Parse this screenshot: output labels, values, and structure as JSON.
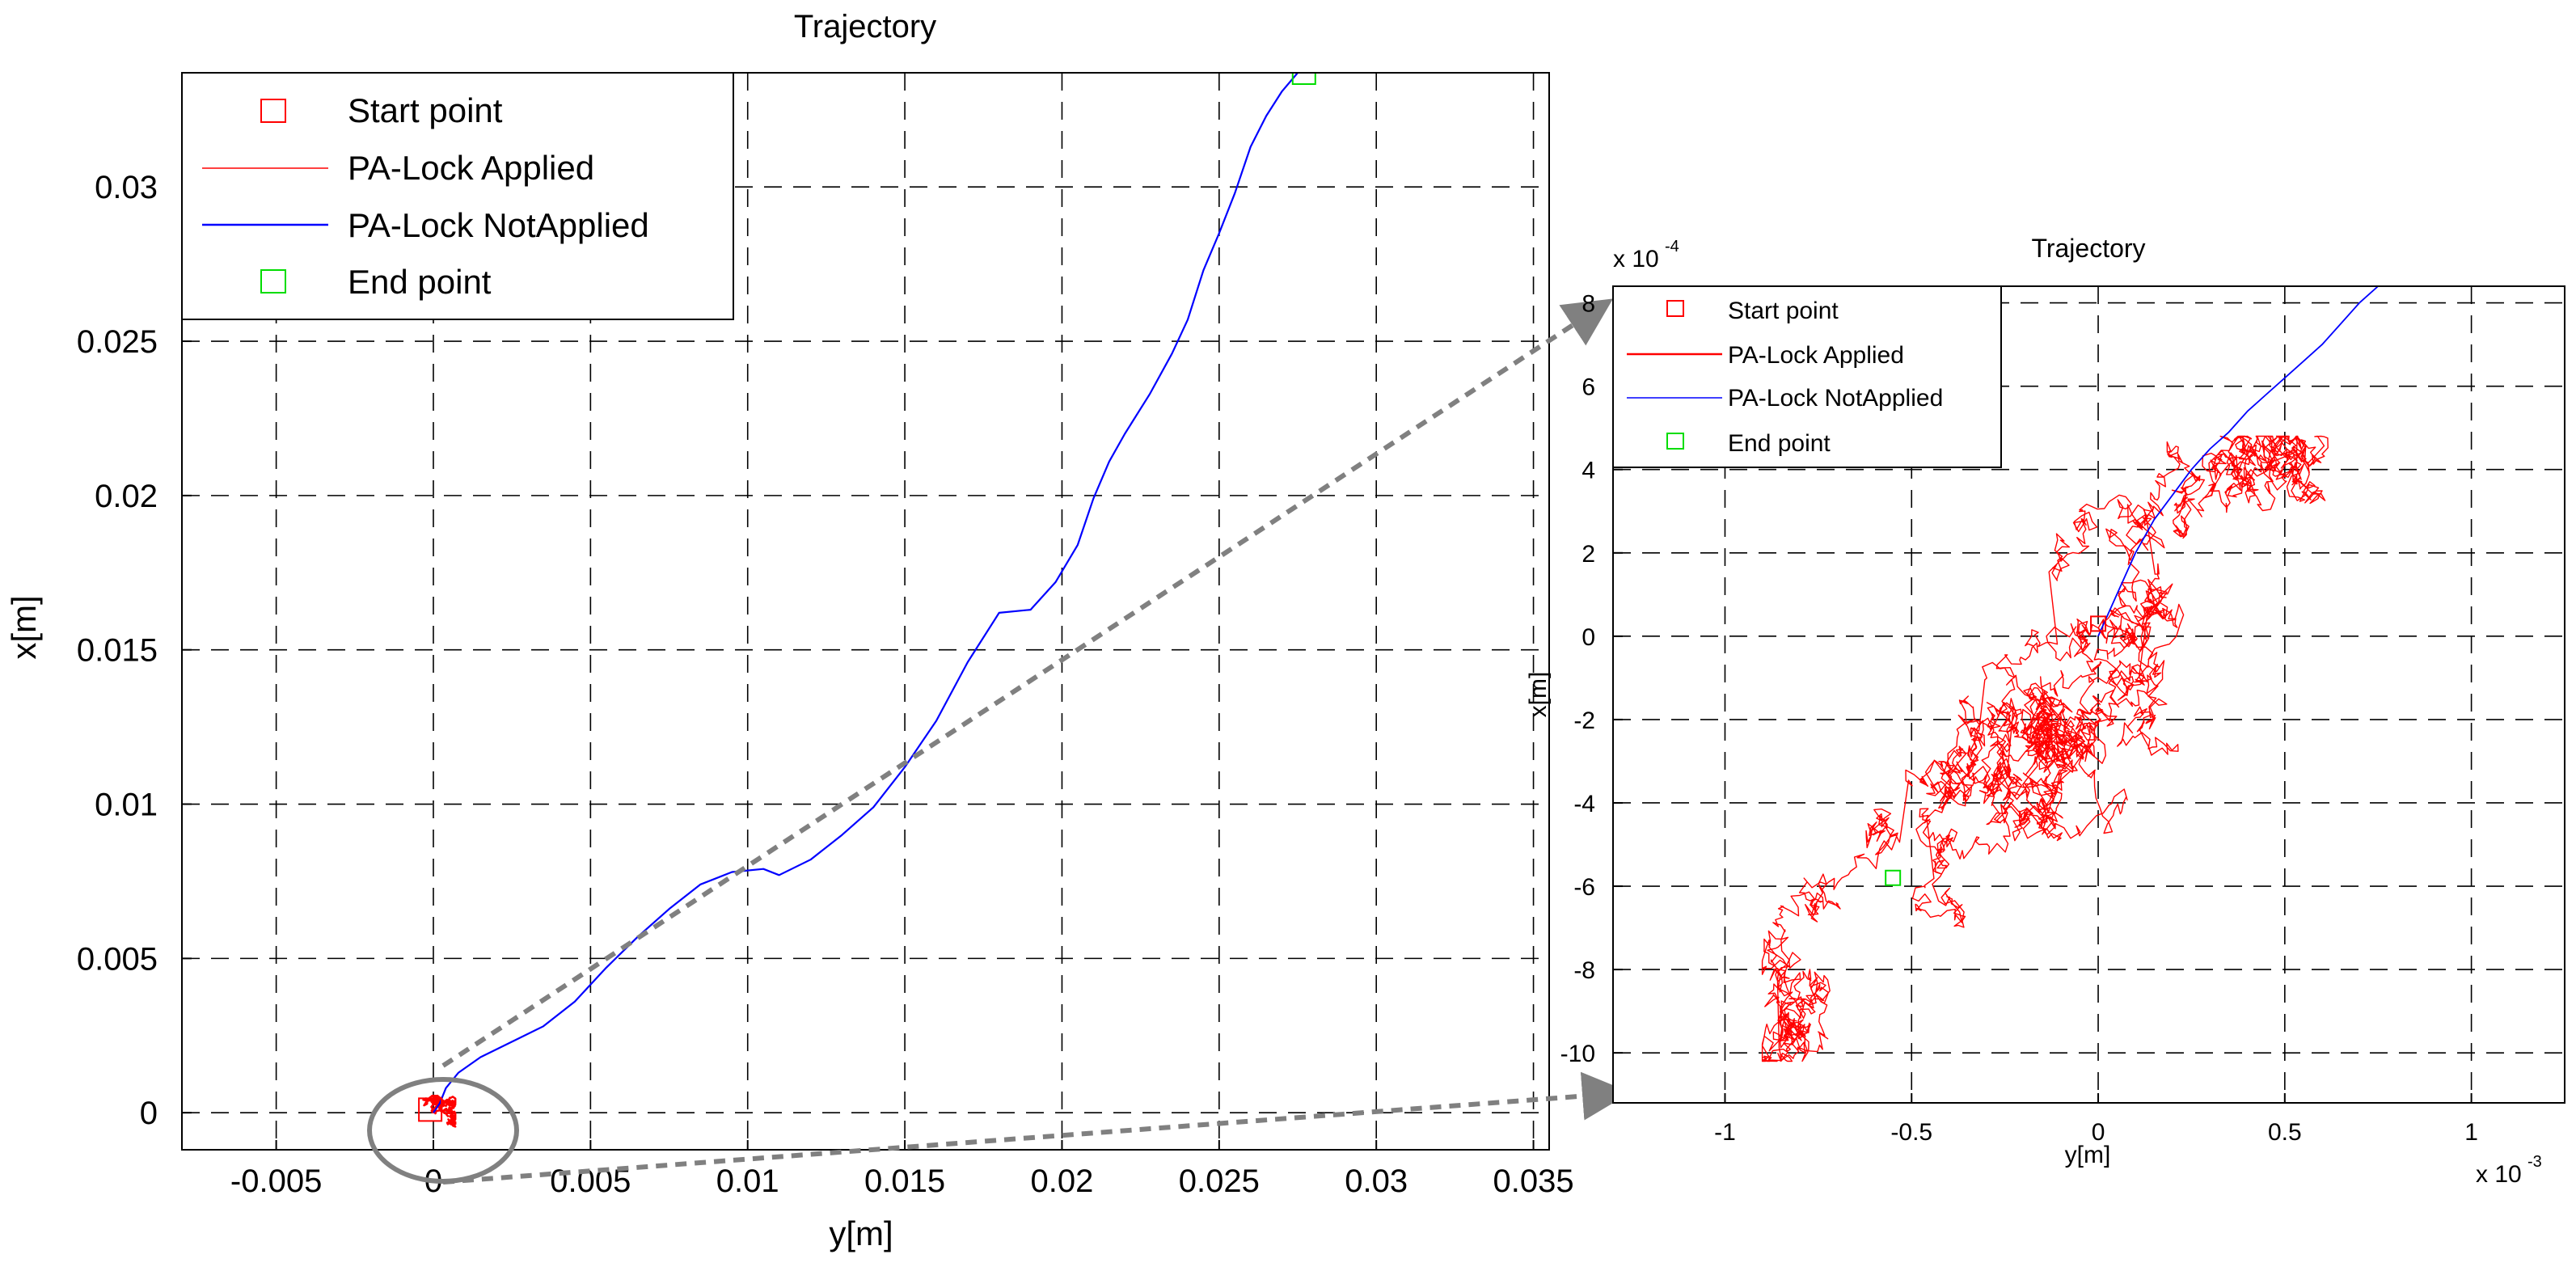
{
  "colors": {
    "start": "#ff0000",
    "applied": "#ff0000",
    "not_applied": "#0000ff",
    "end": "#00dd00",
    "grid": "#000000",
    "arrow": "#808080"
  },
  "chart_data": [
    {
      "type": "line",
      "title": "Trajectory",
      "xlabel": "y[m]",
      "ylabel": "x[m]",
      "xlim": [
        -0.008,
        0.0355
      ],
      "ylim": [
        -0.0012,
        0.0337
      ],
      "grid": true,
      "xticks": [
        -0.005,
        0,
        0.005,
        0.01,
        0.015,
        0.02,
        0.025,
        0.03,
        0.035
      ],
      "xtick_labels": [
        "-0.005",
        "0",
        "0.005",
        "0.01",
        "0.015",
        "0.02",
        "0.025",
        "0.03",
        "0.035"
      ],
      "yticks": [
        0,
        0.005,
        0.01,
        0.015,
        0.02,
        0.025,
        0.03
      ],
      "ytick_labels": [
        "0",
        "0.005",
        "0.01",
        "0.015",
        "0.02",
        "0.025",
        "0.03"
      ],
      "legend_position": "top-left",
      "legend": [
        "Start point",
        "PA-Lock Applied",
        "PA-Lock NotApplied",
        "End point"
      ],
      "series": [
        {
          "name": "PA-Lock NotApplied",
          "x": [
            0,
            0.0002,
            0.0004,
            0.0008,
            0.0015,
            0.0025,
            0.0035,
            0.0045,
            0.0055,
            0.0065,
            0.0075,
            0.0085,
            0.0095,
            0.0105,
            0.011,
            0.012,
            0.013,
            0.014,
            0.015,
            0.016,
            0.017,
            0.018,
            0.019,
            0.0198,
            0.0205,
            0.021,
            0.0215,
            0.022,
            0.0228,
            0.0235,
            0.024,
            0.0245,
            0.025,
            0.0255,
            0.026,
            0.0265,
            0.027,
            0.0275
          ],
          "y": [
            0,
            0.0003,
            0.0008,
            0.0013,
            0.0018,
            0.0023,
            0.0028,
            0.0036,
            0.0047,
            0.0057,
            0.0066,
            0.0074,
            0.0078,
            0.0079,
            0.0077,
            0.0082,
            0.009,
            0.0099,
            0.0112,
            0.0127,
            0.0146,
            0.0162,
            0.0163,
            0.0172,
            0.0184,
            0.0199,
            0.0211,
            0.022,
            0.0233,
            0.0246,
            0.0257,
            0.0273,
            0.0285,
            0.0298,
            0.0313,
            0.0323,
            0.0331,
            0.0337
          ]
        }
      ],
      "markers": [
        {
          "name": "Start point",
          "x": -0.0001,
          "y": 0.0001
        },
        {
          "name": "End point",
          "x": 0.0277,
          "y": 0.0337
        }
      ]
    },
    {
      "type": "line",
      "title": "Trajectory",
      "xlabel": "y[m]",
      "ylabel": "x[m]",
      "xlim": [
        -1.3,
        1.25
      ],
      "ylim": [
        -11.2,
        8.4
      ],
      "x_multiplier_label": "x 10",
      "x_multiplier_exp": "-3",
      "y_multiplier_label": "x 10",
      "y_multiplier_exp": "-4",
      "grid": true,
      "xticks": [
        -1,
        -0.5,
        0,
        0.5,
        1
      ],
      "xtick_labels": [
        "-1",
        "-0.5",
        "0",
        "0.5",
        "1"
      ],
      "yticks": [
        -10,
        -8,
        -6,
        -4,
        -2,
        0,
        2,
        4,
        6,
        8
      ],
      "ytick_labels": [
        "-10",
        "-8",
        "-6",
        "-4",
        "-2",
        "0",
        "2",
        "4",
        "6",
        "8"
      ],
      "legend_position": "top-left",
      "legend": [
        "Start point",
        "PA-Lock Applied",
        "PA-Lock NotApplied",
        "End point"
      ],
      "series": [
        {
          "name": "PA-Lock NotApplied",
          "x": [
            0,
            0.05,
            0.1,
            0.15,
            0.2,
            0.25,
            0.3,
            0.35,
            0.4,
            0.45,
            0.5,
            0.55,
            0.6,
            0.65,
            0.7,
            0.75
          ],
          "y": [
            0,
            1.0,
            2.0,
            2.8,
            3.4,
            4.0,
            4.5,
            4.9,
            5.4,
            5.8,
            6.2,
            6.6,
            7.0,
            7.5,
            8.0,
            8.4
          ]
        }
      ],
      "markers": [
        {
          "name": "Start point",
          "x": 0.0,
          "y": 0.3
        },
        {
          "name": "End point",
          "x": -0.55,
          "y": -5.8
        }
      ]
    }
  ]
}
